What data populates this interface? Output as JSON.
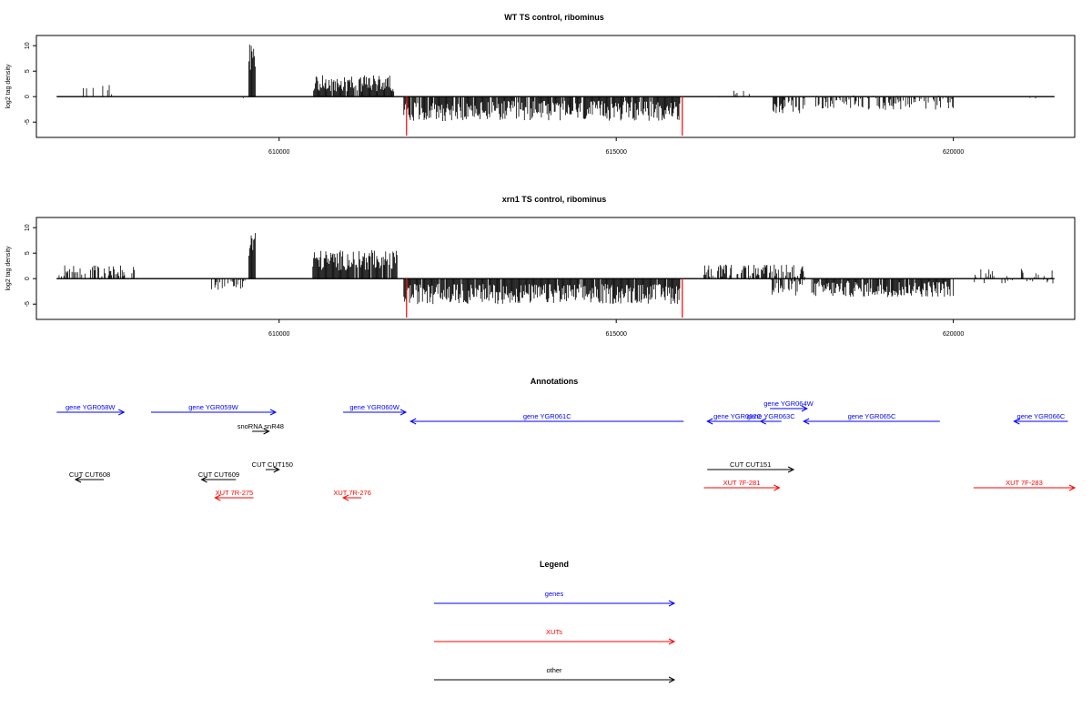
{
  "colors": {
    "gene": "#0000ff",
    "xut": "#ff0000",
    "other": "#000000",
    "mark": "#ff0000"
  },
  "chart_data": [
    {
      "type": "bar",
      "title": "WT TS control, ribominus",
      "ylabel": "log2 tag density",
      "xlim": [
        606400,
        621800
      ],
      "ylim": [
        -8,
        12
      ],
      "xticks": [
        610000,
        615000,
        620000
      ],
      "yticks": [
        10,
        5,
        0,
        -5
      ],
      "xtick_labels": [
        "610000",
        "615000",
        "620000"
      ],
      "ytick_labels": [
        "10",
        "5",
        "0",
        "-5"
      ],
      "marker_lines": [
        611890,
        615980
      ],
      "track_extent": [
        606700,
        621500
      ],
      "signal_blocks": [
        {
          "start": 606700,
          "end": 607800,
          "mean": 1.0,
          "amp": 1.3,
          "density": 0.12
        },
        {
          "start": 609000,
          "end": 609500,
          "mean": -0.5,
          "amp": 0.6,
          "density": 0.08
        },
        {
          "start": 609550,
          "end": 609650,
          "mean": 7.0,
          "amp": 4.0,
          "density": 1.0
        },
        {
          "start": 610500,
          "end": 611700,
          "mean": 2.6,
          "amp": 1.6,
          "density": 0.9
        },
        {
          "start": 611850,
          "end": 615950,
          "mean": -2.8,
          "amp": 2.0,
          "density": 0.9
        },
        {
          "start": 616300,
          "end": 617000,
          "mean": 0.2,
          "amp": 1.1,
          "density": 0.15
        },
        {
          "start": 617300,
          "end": 617800,
          "mean": -1.8,
          "amp": 1.5,
          "density": 0.6
        },
        {
          "start": 617900,
          "end": 620000,
          "mean": -1.2,
          "amp": 1.4,
          "density": 0.55
        },
        {
          "start": 620800,
          "end": 621300,
          "mean": 0.4,
          "amp": 1.4,
          "density": 0.06
        }
      ]
    },
    {
      "type": "bar",
      "title": "xrn1 TS control, ribominus",
      "ylabel": "log2 tag density",
      "xlim": [
        606400,
        621800
      ],
      "ylim": [
        -8,
        12
      ],
      "xticks": [
        610000,
        615000,
        620000
      ],
      "yticks": [
        10,
        5,
        0,
        -5
      ],
      "xtick_labels": [
        "610000",
        "615000",
        "620000"
      ],
      "ytick_labels": [
        "10",
        "5",
        "0",
        "-5"
      ],
      "marker_lines": [
        611890,
        615980
      ],
      "track_extent": [
        606700,
        621500
      ],
      "signal_blocks": [
        {
          "start": 606700,
          "end": 607900,
          "mean": 1.2,
          "amp": 1.4,
          "density": 0.5
        },
        {
          "start": 609000,
          "end": 609500,
          "mean": -1.2,
          "amp": 1.0,
          "density": 0.5
        },
        {
          "start": 609550,
          "end": 609650,
          "mean": 7.0,
          "amp": 4.0,
          "density": 1.0
        },
        {
          "start": 610500,
          "end": 611750,
          "mean": 3.6,
          "amp": 2.0,
          "density": 0.95
        },
        {
          "start": 611850,
          "end": 615950,
          "mean": -3.0,
          "amp": 2.0,
          "density": 0.95
        },
        {
          "start": 616300,
          "end": 617800,
          "mean": 1.2,
          "amp": 1.6,
          "density": 0.7
        },
        {
          "start": 617300,
          "end": 617800,
          "mean": -1.8,
          "amp": 1.6,
          "density": 0.6
        },
        {
          "start": 617900,
          "end": 620000,
          "mean": -2.0,
          "amp": 1.6,
          "density": 0.9
        },
        {
          "start": 620300,
          "end": 621500,
          "mean": 0.5,
          "amp": 1.5,
          "density": 0.35
        }
      ]
    },
    {
      "type": "table",
      "title": "Annotations",
      "xlim": [
        606400,
        621800
      ],
      "features": [
        {
          "label": "gene YGR058W",
          "type": "gene",
          "start": 606700,
          "end": 607700,
          "strand": "+",
          "row": 0
        },
        {
          "label": "gene YGR059W",
          "type": "gene",
          "start": 608100,
          "end": 609950,
          "strand": "+",
          "row": 0
        },
        {
          "label": "gene YGR060W",
          "type": "gene",
          "start": 610950,
          "end": 611880,
          "strand": "+",
          "row": 0
        },
        {
          "label": "gene YGR061C",
          "type": "gene",
          "start": 611950,
          "end": 616000,
          "strand": "-",
          "row": 1
        },
        {
          "label": "gene YGR062C",
          "type": "gene",
          "start": 616350,
          "end": 617250,
          "strand": "-",
          "row": 1
        },
        {
          "label": "gene YGR063C",
          "type": "gene",
          "start": 617140,
          "end": 617450,
          "strand": "-",
          "row": 1
        },
        {
          "label": "gene YGR064W",
          "type": "gene",
          "start": 617280,
          "end": 617830,
          "strand": "+",
          "row": 2
        },
        {
          "label": "gene YGR065C",
          "type": "gene",
          "start": 617780,
          "end": 619800,
          "strand": "-",
          "row": 1
        },
        {
          "label": "gene YGR066C",
          "type": "gene",
          "start": 620900,
          "end": 621700,
          "strand": "-",
          "row": 1
        },
        {
          "label": "snoRNA snR48",
          "type": "other",
          "start": 609600,
          "end": 609850,
          "strand": "+",
          "row": 3
        },
        {
          "label": "CUT CUT608",
          "type": "other",
          "start": 606980,
          "end": 607400,
          "strand": "-",
          "row": 4
        },
        {
          "label": "CUT CUT609",
          "type": "other",
          "start": 608850,
          "end": 609360,
          "strand": "-",
          "row": 4
        },
        {
          "label": "CUT CUT150",
          "type": "other",
          "start": 609800,
          "end": 610000,
          "strand": "+",
          "row": 5
        },
        {
          "label": "CUT CUT151",
          "type": "other",
          "start": 616350,
          "end": 617630,
          "strand": "+",
          "row": 5
        },
        {
          "label": "XUT 7R-275",
          "type": "xut",
          "start": 609050,
          "end": 609620,
          "strand": "-",
          "row": 6
        },
        {
          "label": "XUT 7R-276",
          "type": "xut",
          "start": 610950,
          "end": 611220,
          "strand": "-",
          "row": 6
        },
        {
          "label": "XUT 7F-281",
          "type": "xut",
          "start": 616300,
          "end": 617420,
          "strand": "+",
          "row": 7
        },
        {
          "label": "XUT 7F-283",
          "type": "xut",
          "start": 620300,
          "end": 621800,
          "strand": "+",
          "row": 7
        }
      ]
    },
    {
      "type": "table",
      "title": "Legend",
      "items": [
        {
          "label": "genes",
          "type": "gene"
        },
        {
          "label": "XUTs",
          "type": "xut"
        },
        {
          "label": "other",
          "type": "other"
        }
      ]
    }
  ]
}
